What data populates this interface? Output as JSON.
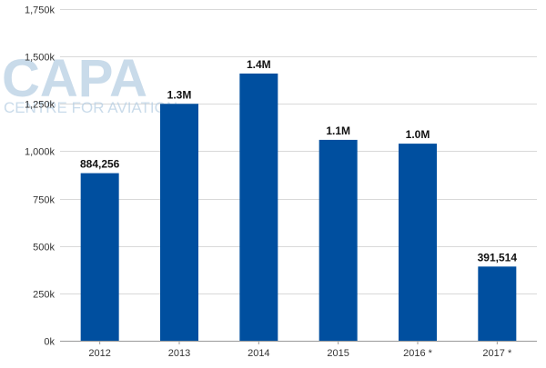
{
  "watermark": {
    "logo_text": "CAPA",
    "tagline": "CENTRE FOR AVIATION"
  },
  "colors": {
    "bar": "#004f9f",
    "grid": "#d9d9d9",
    "axis_text": "#333333",
    "label_text": "#111111",
    "watermark": "#b8cfe3"
  },
  "chart_data": {
    "type": "bar",
    "categories": [
      "2012",
      "2013",
      "2014",
      "2015",
      "2016 *",
      "2017 *"
    ],
    "values": [
      884256,
      1250000,
      1410000,
      1060000,
      1040000,
      391514
    ],
    "data_labels": [
      "884,256",
      "1.3M",
      "1.4M",
      "1.1M",
      "1.0M",
      "391,514"
    ],
    "ylim": [
      0,
      1750000
    ],
    "yticks": [
      0,
      250000,
      500000,
      750000,
      1000000,
      1250000,
      1500000,
      1750000
    ],
    "ytick_labels": [
      "0k",
      "250k",
      "500k",
      "750k",
      "1,000k",
      "1,250k",
      "1,500k",
      "1,750k"
    ],
    "title": "",
    "xlabel": "",
    "ylabel": "",
    "grid": true,
    "legend": "none"
  }
}
